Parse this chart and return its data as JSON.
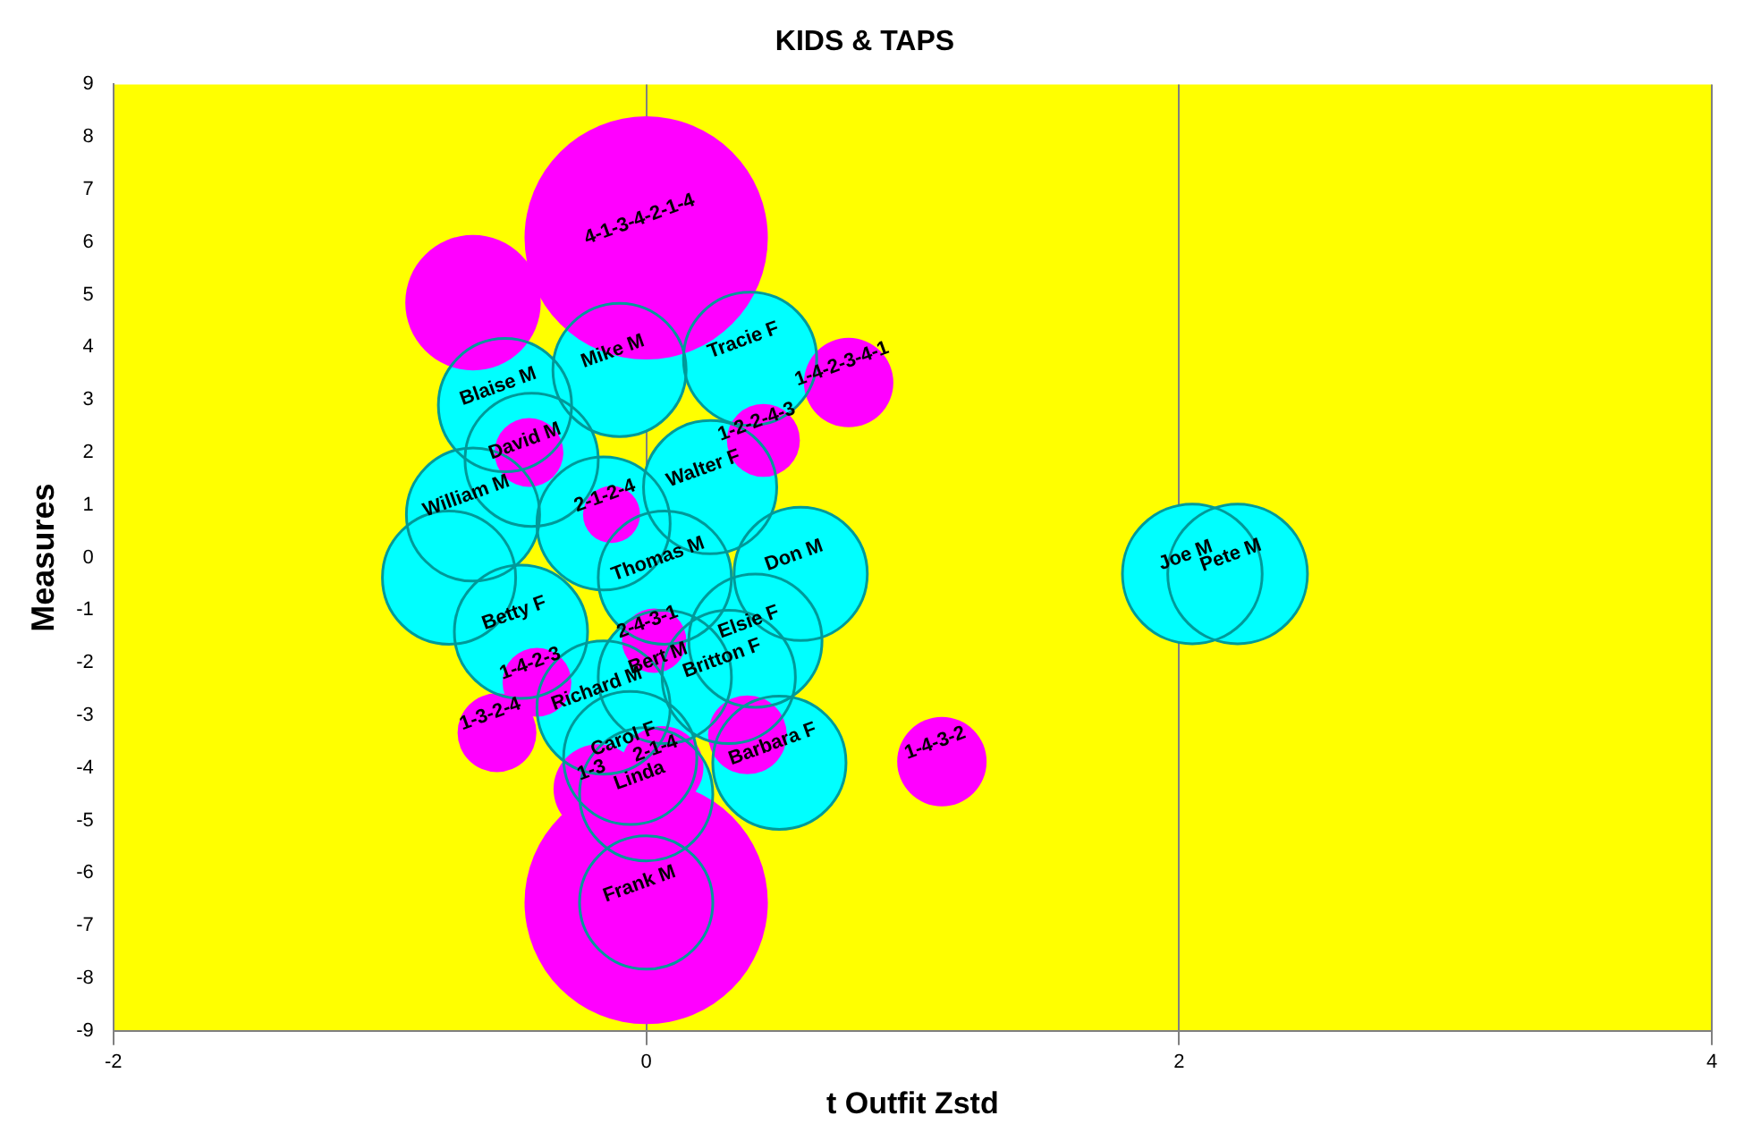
{
  "chart_data": {
    "type": "bubble",
    "title": "KIDS & TAPS",
    "xlabel": "t Outfit Zstd",
    "ylabel": "Measures",
    "xlim": [
      -2,
      4
    ],
    "xticks": [
      -2,
      0,
      2,
      4
    ],
    "ylim": [
      -9,
      9
    ],
    "yticks": [
      -9,
      -8,
      -7,
      -6,
      -5,
      -4,
      -3,
      -2,
      -1,
      0,
      1,
      2,
      3,
      4,
      5,
      6,
      7,
      8,
      9
    ],
    "grid": "x",
    "legend": false,
    "series": [
      {
        "color": "#00ffff",
        "x": [
          -0.53,
          -0.1,
          0.39,
          -0.43,
          0.24,
          -0.65,
          -0.16,
          -0.74,
          0.07,
          0.58,
          -0.47,
          0.41,
          0.07,
          0.31,
          -0.16,
          -0.06,
          0.5,
          0,
          0,
          2.05,
          2.22
        ],
        "values": [
          2.9,
          3.57,
          3.78,
          1.86,
          1.34,
          0.82,
          0.65,
          -0.38,
          -0.38,
          -0.31,
          -1.41,
          -1.58,
          -2.27,
          -2.27,
          -2.85,
          -3.81,
          -3.9,
          -4.5,
          -6.56,
          -0.31,
          -0.31
        ],
        "sizes": [
          0.3,
          0.3,
          0.3,
          0.3,
          0.3,
          0.3,
          0.3,
          0.3,
          0.3,
          0.3,
          0.3,
          0.3,
          0.3,
          0.3,
          0.3,
          0.3,
          0.3,
          0.3,
          0.3,
          0.33,
          0.33
        ],
        "value_labels": [
          "Blaise M",
          "Mike M",
          "Tracie F",
          "David M",
          "Walter F",
          "William M",
          null,
          null,
          "Thomas M",
          "Don M",
          "Betty F",
          "Elsie F",
          "Bert M",
          "Britton F",
          "Richard M",
          "Carol F",
          "Barbara F",
          "Linda",
          "Frank M",
          "Joe M",
          "Pete M"
        ]
      },
      {
        "color": "#ff00ff",
        "x": [
          0,
          -0.65,
          0.76,
          0.44,
          -0.44,
          -0.13,
          0.03,
          -0.41,
          -0.56,
          1.11,
          0.38,
          0.06,
          -0.18,
          0
        ],
        "values": [
          6.08,
          4.85,
          3.33,
          2.23,
          2.0,
          0.82,
          -1.58,
          -2.37,
          -3.33,
          -3.88,
          -3.37,
          -3.99,
          -4.4,
          -6.56
        ],
        "sizes": [
          1,
          0.31,
          0.135,
          0.09,
          0.08,
          0.055,
          0.07,
          0.08,
          0.105,
          0.135,
          0.105,
          0.115,
          0.135,
          1
        ],
        "value_labels": [
          "4-1-3-4-2-1-4",
          null,
          "1-4-2-3-4-1",
          "1-2-2-4-3",
          null,
          "2-1-2-4",
          "2-4-3-1",
          "1-4-2-3",
          "1-3-2-4",
          "1-4-3-2",
          null,
          "2-1-4",
          "1-3",
          null
        ]
      }
    ]
  }
}
